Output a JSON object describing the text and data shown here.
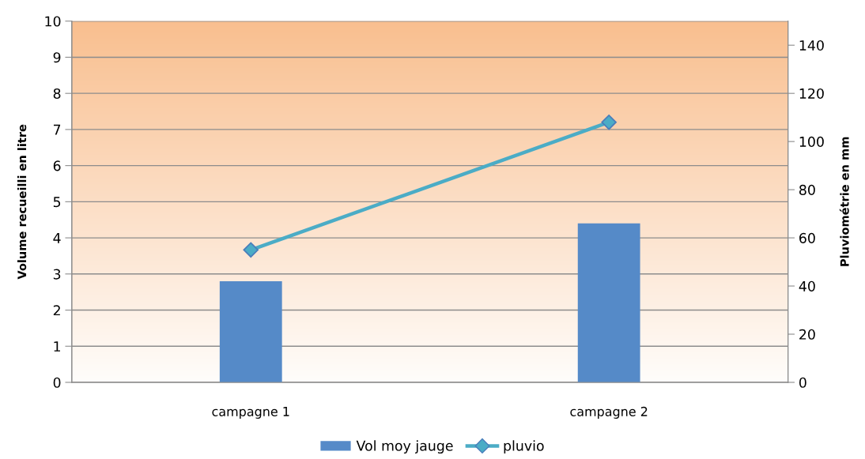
{
  "chart_data": {
    "type": "bar",
    "categories": [
      "campagne 1",
      "campagne 2"
    ],
    "ylabel": "Volume recueilli en litre",
    "y2label": "Pluviométrie en mm",
    "ylim": [
      0,
      10
    ],
    "yticks": [
      0,
      1,
      2,
      3,
      4,
      5,
      6,
      7,
      8,
      9,
      10
    ],
    "y2lim": [
      0,
      150
    ],
    "y2ticks": [
      0,
      20,
      40,
      60,
      80,
      100,
      120,
      140
    ],
    "grid": "y",
    "legend": "bottom",
    "series": [
      {
        "name": "Vol moy jauge",
        "color": "#558ac8",
        "values": [
          2.8,
          4.4
        ]
      },
      {
        "name": "pluvio",
        "type": "line",
        "axis": "y2",
        "color": "#4bacc6",
        "marker": "diamond",
        "values": [
          55,
          108
        ]
      }
    ]
  }
}
